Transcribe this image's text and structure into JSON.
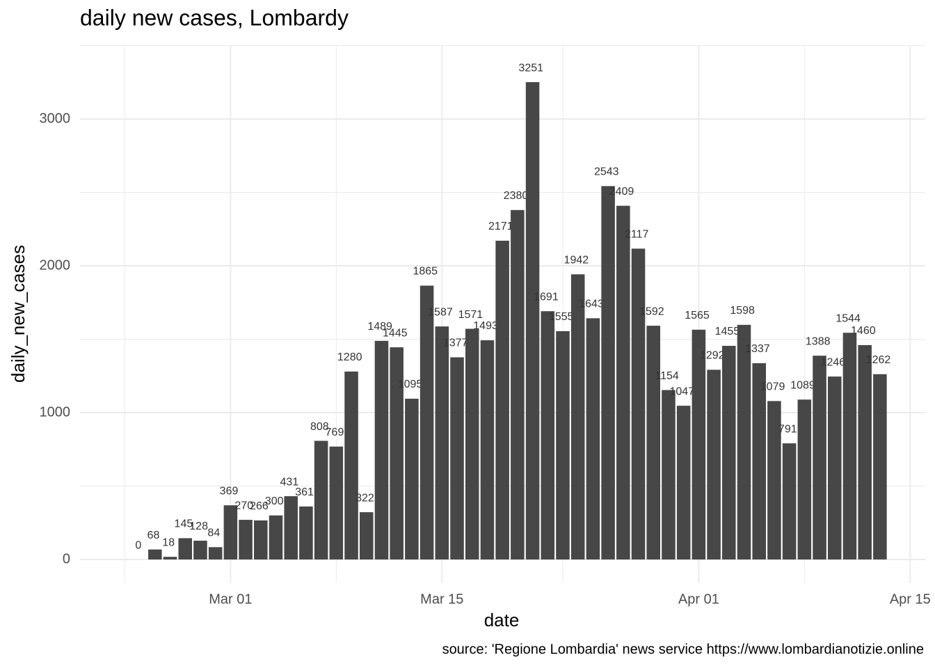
{
  "chart_data": {
    "type": "bar",
    "title": "daily new cases, Lombardy",
    "xlabel": "date",
    "ylabel": "daily_new_cases",
    "caption": "source: 'Regione Lombardia' news service https://www.lombardianotizie.online",
    "x": [
      "Feb 24",
      "Feb 25",
      "Feb 26",
      "Feb 27",
      "Feb 28",
      "Feb 29",
      "Mar 01",
      "Mar 02",
      "Mar 03",
      "Mar 04",
      "Mar 05",
      "Mar 06",
      "Mar 07",
      "Mar 08",
      "Mar 09",
      "Mar 10",
      "Mar 11",
      "Mar 12",
      "Mar 13",
      "Mar 14",
      "Mar 15",
      "Mar 16",
      "Mar 17",
      "Mar 18",
      "Mar 19",
      "Mar 20",
      "Mar 21",
      "Mar 22",
      "Mar 23",
      "Mar 24",
      "Mar 25",
      "Mar 26",
      "Mar 27",
      "Mar 28",
      "Mar 29",
      "Mar 30",
      "Mar 31",
      "Apr 01",
      "Apr 02",
      "Apr 03",
      "Apr 04",
      "Apr 05",
      "Apr 06",
      "Apr 07",
      "Apr 08",
      "Apr 09",
      "Apr 10",
      "Apr 11",
      "Apr 12",
      "Apr 13"
    ],
    "values": [
      0,
      68,
      18,
      145,
      128,
      84,
      369,
      270,
      266,
      300,
      431,
      361,
      808,
      769,
      1280,
      322,
      1489,
      1445,
      1095,
      1865,
      1587,
      1377,
      1571,
      1493,
      2171,
      2380,
      3251,
      1691,
      1555,
      1942,
      1643,
      2543,
      2409,
      2117,
      1592,
      1154,
      1047,
      1565,
      1292,
      1455,
      1598,
      1337,
      1079,
      791,
      1089,
      1388,
      1246,
      1544,
      1460,
      1262
    ],
    "color": "#474747",
    "xlim": [
      "Feb 21",
      "Apr 16"
    ],
    "xticks": [
      "Mar 01",
      "Mar 15",
      "Apr 01",
      "Apr 15"
    ],
    "xminor": [
      "Feb 23",
      "Mar 08",
      "Mar 23",
      "Apr 08"
    ],
    "ylim": [
      -160,
      3500
    ],
    "yticks": [
      0,
      1000,
      2000,
      3000
    ],
    "yminor": [
      500,
      1500,
      2500,
      3500
    ],
    "grid": true
  }
}
